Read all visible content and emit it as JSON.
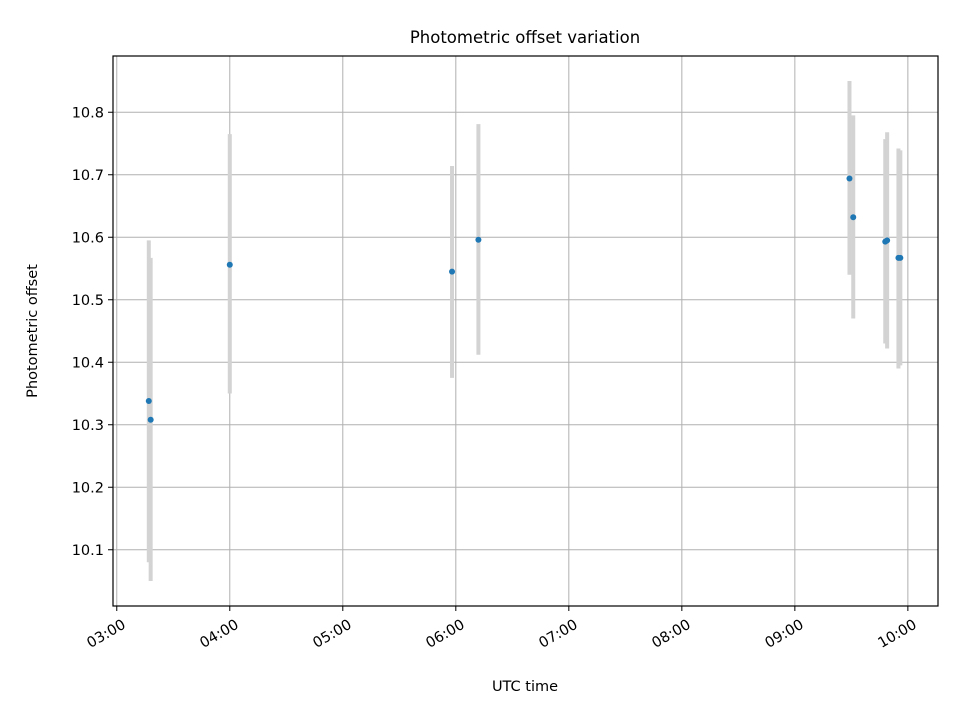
{
  "chart_data": {
    "type": "scatter",
    "title": "Photometric offset variation",
    "xlabel": "UTC time",
    "ylabel": "Photometric offset",
    "x_axis_kind": "time",
    "xlim": [
      "02:58",
      "10:16"
    ],
    "ylim": [
      10.01,
      10.89
    ],
    "x_ticks": [
      "03:00",
      "04:00",
      "05:00",
      "06:00",
      "07:00",
      "08:00",
      "09:00",
      "10:00"
    ],
    "y_ticks": [
      10.1,
      10.2,
      10.3,
      10.4,
      10.5,
      10.6,
      10.7,
      10.8
    ],
    "y_tick_labels": [
      "10.1",
      "10.2",
      "10.3",
      "10.4",
      "10.5",
      "10.6",
      "10.7",
      "10.8"
    ],
    "grid": true,
    "marker_color": "#1f77b4",
    "errorbar_color": "#d3d3d3",
    "points": [
      {
        "time": "03:17",
        "y": 10.338,
        "lo": 10.08,
        "hi": 10.595
      },
      {
        "time": "03:18",
        "y": 10.308,
        "lo": 10.05,
        "hi": 10.567
      },
      {
        "time": "04:00",
        "y": 10.556,
        "lo": 10.35,
        "hi": 10.765
      },
      {
        "time": "05:58",
        "y": 10.545,
        "lo": 10.375,
        "hi": 10.714
      },
      {
        "time": "06:12",
        "y": 10.596,
        "lo": 10.412,
        "hi": 10.781
      },
      {
        "time": "09:29",
        "y": 10.694,
        "lo": 10.54,
        "hi": 10.85
      },
      {
        "time": "09:31",
        "y": 10.632,
        "lo": 10.47,
        "hi": 10.795
      },
      {
        "time": "09:48",
        "y": 10.593,
        "lo": 10.43,
        "hi": 10.757
      },
      {
        "time": "09:49",
        "y": 10.595,
        "lo": 10.422,
        "hi": 10.768
      },
      {
        "time": "09:55",
        "y": 10.567,
        "lo": 10.39,
        "hi": 10.742
      },
      {
        "time": "09:56",
        "y": 10.567,
        "lo": 10.395,
        "hi": 10.739
      }
    ]
  }
}
